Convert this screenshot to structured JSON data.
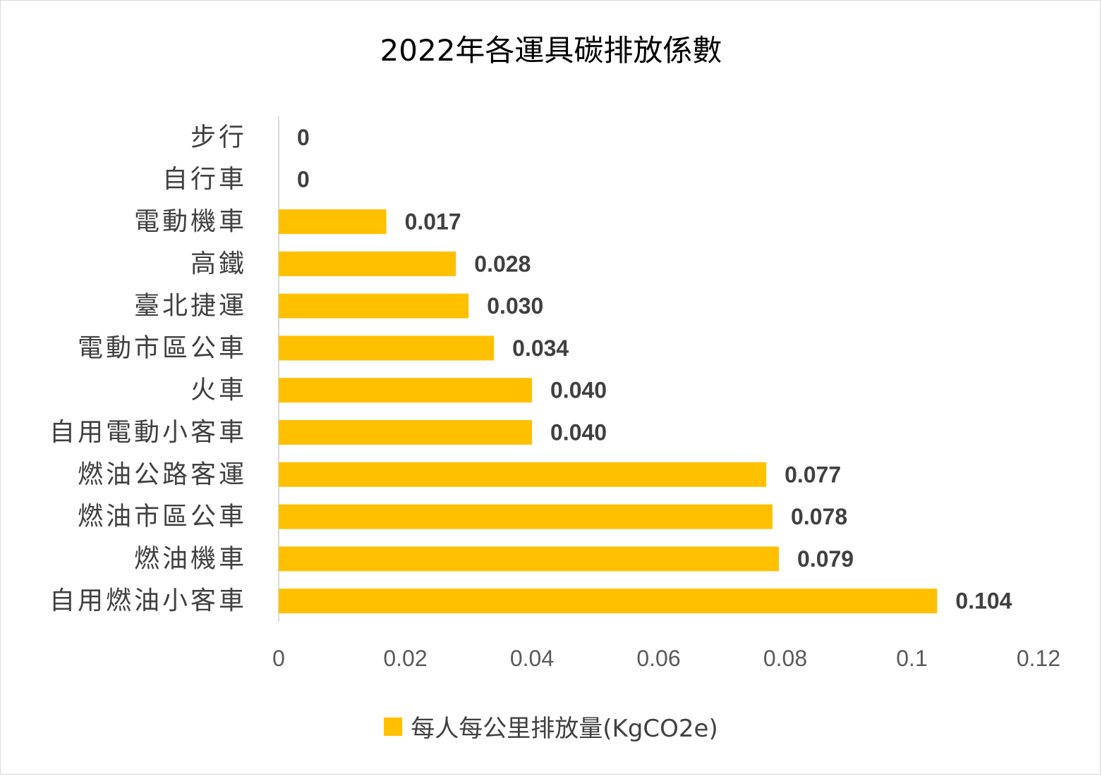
{
  "chart_data": {
    "type": "bar",
    "orientation": "horizontal",
    "title": "2022年各運具碳排放係數",
    "categories": [
      "步行",
      "自行車",
      "電動機車",
      "高鐵",
      "臺北捷運",
      "電動市區公車",
      "火車",
      "自用電動小客車",
      "燃油公路客運",
      "燃油市區公車",
      "燃油機車",
      "自用燃油小客車"
    ],
    "series": [
      {
        "name": "每人每公里排放量(KgCO2e)",
        "color": "#FFC000",
        "values": [
          0,
          0,
          0.017,
          0.028,
          0.03,
          0.034,
          0.04,
          0.04,
          0.077,
          0.078,
          0.079,
          0.104
        ],
        "data_labels": [
          "0",
          "0",
          "0.017",
          "0.028",
          "0.030",
          "0.034",
          "0.040",
          "0.040",
          "0.077",
          "0.078",
          "0.079",
          "0.104"
        ]
      }
    ],
    "xlim": [
      0,
      0.12
    ],
    "x_ticks": [
      "0",
      "0.02",
      "0.04",
      "0.06",
      "0.08",
      "0.1",
      "0.12"
    ],
    "grid": false,
    "legend_position": "bottom"
  }
}
